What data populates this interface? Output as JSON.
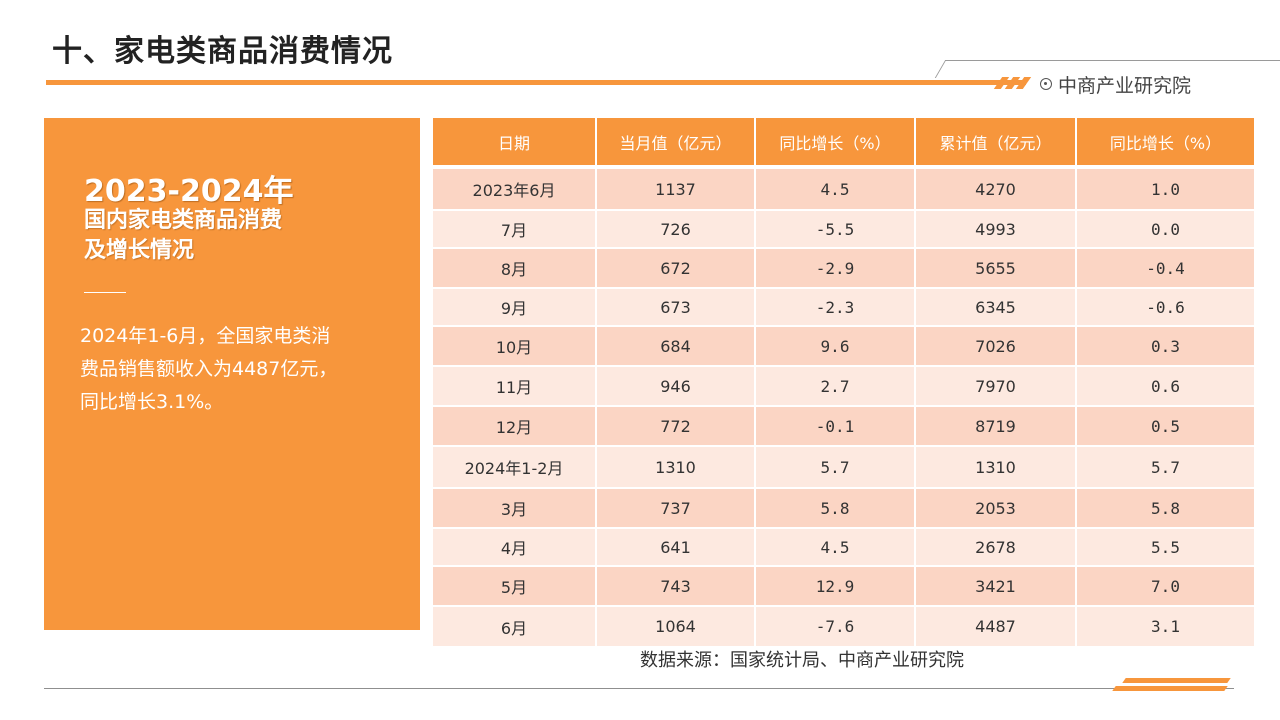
{
  "title": "十、家电类商品消费情况",
  "brand": {
    "name": "中商产业研究院",
    "icon": "target-icon",
    "accent": "#f7963c"
  },
  "panel": {
    "year_range": "2023-2024年",
    "heading_line1": "国内家电类商品消费",
    "heading_line2": "及增长情况",
    "body_line1": "2024年1-6月，全国家电类消",
    "body_line2": "费品销售额收入为4487亿元，",
    "body_line3": "同比增长3.1%。"
  },
  "table": {
    "headers": [
      "日期",
      "当月值（亿元）",
      "同比增长（%）",
      "累计值（亿元）",
      "同比增长（%）"
    ],
    "rows": [
      [
        "2023年6月",
        "1137",
        "4.5",
        "4270",
        "1.0"
      ],
      [
        "7月",
        "726",
        "-5.5",
        "4993",
        "0.0"
      ],
      [
        "8月",
        "672",
        "-2.9",
        "5655",
        "-0.4"
      ],
      [
        "9月",
        "673",
        "-2.3",
        "6345",
        "-0.6"
      ],
      [
        "10月",
        "684",
        "9.6",
        "7026",
        "0.3"
      ],
      [
        "11月",
        "946",
        "2.7",
        "7970",
        "0.6"
      ],
      [
        "12月",
        "772",
        "-0.1",
        "8719",
        "0.5"
      ],
      [
        "2024年1-2月",
        "1310",
        "5.7",
        "1310",
        "5.7"
      ],
      [
        "3月",
        "737",
        "5.8",
        "2053",
        "5.8"
      ],
      [
        "4月",
        "641",
        "4.5",
        "2678",
        "5.5"
      ],
      [
        "5月",
        "743",
        "12.9",
        "3421",
        "7.0"
      ],
      [
        "6月",
        "1064",
        "-7.6",
        "4487",
        "3.1"
      ]
    ]
  },
  "source": "数据来源：国家统计局、中商产业研究院"
}
